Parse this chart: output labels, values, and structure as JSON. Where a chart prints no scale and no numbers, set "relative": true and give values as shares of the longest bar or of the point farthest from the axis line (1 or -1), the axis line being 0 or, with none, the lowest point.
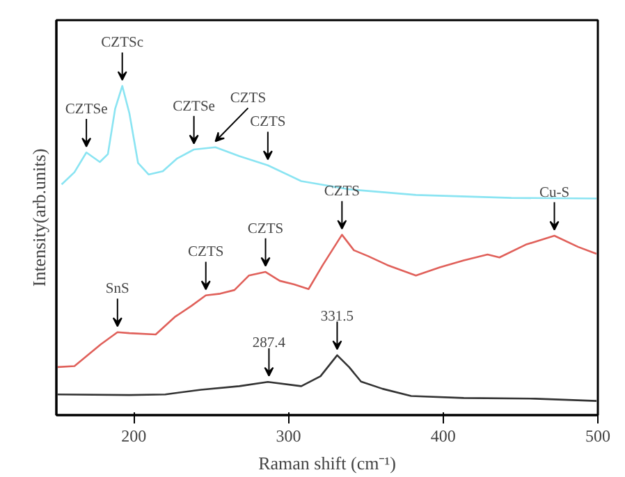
{
  "chart_data": {
    "type": "line",
    "relative": true,
    "xlabel": "Raman shift (cm⁻¹)",
    "ylabel": "Intensity(arb.units)",
    "xlim": [
      150,
      500
    ],
    "xticks": [
      200,
      300,
      400,
      500
    ],
    "grid": false,
    "marker": "none",
    "line_style": "solid",
    "tick_labels": "x",
    "series": [
      {
        "color": "#8ae4f2",
        "x": [
          153.4,
          161.7,
          169.4,
          178.1,
          183.3,
          188.0,
          192.6,
          197.2,
          202.8,
          209.6,
          218.8,
          228.1,
          238.9,
          252.8,
          268.2,
          286.7,
          308.3,
          339.2,
          382.4,
          444.1,
          499.1
        ],
        "values": [
          0.701,
          0.738,
          0.798,
          0.769,
          0.793,
          0.931,
          1.0,
          0.917,
          0.766,
          0.731,
          0.741,
          0.78,
          0.807,
          0.814,
          0.787,
          0.759,
          0.711,
          0.686,
          0.669,
          0.66,
          0.658
        ]
      },
      {
        "color": "#e0605a",
        "x": [
          150.9,
          161.7,
          178.7,
          189.5,
          197.2,
          214.2,
          226.5,
          237.3,
          246.6,
          255.9,
          265.1,
          274.4,
          285.2,
          294.4,
          303.7,
          313.0,
          322.2,
          334.6,
          342.3,
          351.5,
          363.9,
          382.4,
          397.8,
          413.3,
          428.7,
          436.4,
          453.4,
          471.9,
          487.3,
          499.1
        ],
        "values": [
          0.146,
          0.149,
          0.215,
          0.252,
          0.249,
          0.245,
          0.298,
          0.332,
          0.364,
          0.369,
          0.38,
          0.424,
          0.435,
          0.408,
          0.397,
          0.383,
          0.456,
          0.548,
          0.501,
          0.483,
          0.456,
          0.424,
          0.449,
          0.47,
          0.488,
          0.479,
          0.518,
          0.545,
          0.511,
          0.49
        ]
      },
      {
        "color": "#333333",
        "x": [
          150.9,
          197.2,
          220.4,
          243.5,
          268.2,
          286.7,
          308.3,
          320.7,
          331.5,
          339.2,
          346.9,
          360.8,
          379.3,
          413.3,
          459.6,
          499.1
        ],
        "values": [
          0.063,
          0.061,
          0.063,
          0.077,
          0.088,
          0.101,
          0.088,
          0.118,
          0.182,
          0.146,
          0.102,
          0.08,
          0.058,
          0.052,
          0.05,
          0.043
        ]
      }
    ],
    "annotations": [
      {
        "text": "CZTSe",
        "x": 169.4,
        "y": 0.798
      },
      {
        "text": "CZTSc",
        "x": 192.6,
        "y": 1.0
      },
      {
        "text": "CZTSe",
        "x": 238.9,
        "y": 0.807
      },
      {
        "text": "CZTS",
        "x": 252.8,
        "y": 0.814
      },
      {
        "text": "CZTS",
        "x": 286.7,
        "y": 0.759
      },
      {
        "text": "SnS",
        "x": 189.5,
        "y": 0.252
      },
      {
        "text": "CZTS",
        "x": 246.6,
        "y": 0.364
      },
      {
        "text": "CZTS",
        "x": 285.2,
        "y": 0.435
      },
      {
        "text": "CZTS",
        "x": 334.6,
        "y": 0.548
      },
      {
        "text": "Cu-S",
        "x": 471.9,
        "y": 0.545
      },
      {
        "text": "287.4",
        "x": 287.4,
        "y": 0.101
      },
      {
        "text": "331.5",
        "x": 331.5,
        "y": 0.182
      }
    ]
  }
}
